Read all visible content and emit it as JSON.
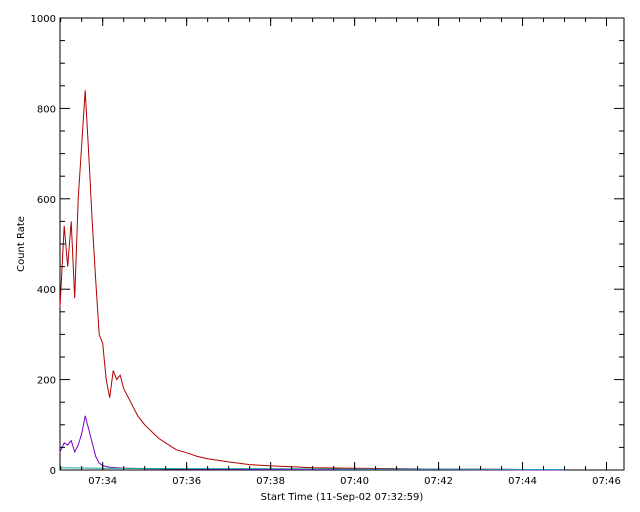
{
  "chart_data": {
    "type": "line",
    "xlabel": "Start Time (11-Sep-02 07:32:59)",
    "ylabel": "Count Rate",
    "xlim": [
      "07:32:59",
      "07:46:25"
    ],
    "ylim": [
      0,
      1000
    ],
    "x_ticks": [
      "07:34",
      "07:36",
      "07:38",
      "07:40",
      "07:42",
      "07:44",
      "07:46"
    ],
    "y_ticks": [
      "0",
      "200",
      "400",
      "600",
      "800",
      "1000"
    ],
    "grid": false,
    "legend": "none",
    "series": [
      {
        "color": "#b00000",
        "x": [
          "07:32:59",
          "07:33:05",
          "07:33:10",
          "07:33:15",
          "07:33:20",
          "07:33:25",
          "07:33:30",
          "07:33:35",
          "07:33:40",
          "07:33:45",
          "07:33:50",
          "07:33:55",
          "07:34:00",
          "07:34:05",
          "07:34:10",
          "07:34:15",
          "07:34:20",
          "07:34:25",
          "07:34:30",
          "07:34:40",
          "07:34:50",
          "07:35:00",
          "07:35:10",
          "07:35:20",
          "07:35:30",
          "07:35:45",
          "07:36:00",
          "07:36:15",
          "07:36:30",
          "07:37:00",
          "07:37:30",
          "07:38:00",
          "07:38:30",
          "07:39:00",
          "07:40:00",
          "07:41:00",
          "07:42:00",
          "07:43:00",
          "07:44:00",
          "07:45:00"
        ],
        "values": [
          360,
          540,
          450,
          550,
          380,
          600,
          720,
          840,
          700,
          550,
          420,
          300,
          280,
          200,
          160,
          220,
          200,
          210,
          180,
          150,
          120,
          100,
          85,
          70,
          60,
          45,
          38,
          30,
          25,
          18,
          12,
          9,
          7,
          5,
          4,
          3,
          2,
          2,
          1,
          1
        ]
      },
      {
        "color": "#7a00c8",
        "x": [
          "07:32:59",
          "07:33:05",
          "07:33:10",
          "07:33:15",
          "07:33:20",
          "07:33:25",
          "07:33:30",
          "07:33:35",
          "07:33:40",
          "07:33:45",
          "07:33:50",
          "07:33:55",
          "07:34:00",
          "07:34:10",
          "07:34:30",
          "07:35:00",
          "07:36:00",
          "07:38:00",
          "07:40:00",
          "07:42:00",
          "07:44:00",
          "07:45:00"
        ],
        "values": [
          40,
          60,
          55,
          65,
          40,
          55,
          80,
          120,
          90,
          60,
          30,
          15,
          10,
          6,
          4,
          3,
          2,
          1,
          1,
          1,
          0,
          0
        ]
      },
      {
        "color": "#1aa89a",
        "x": [
          "07:32:59",
          "07:34:00",
          "07:36:00",
          "07:38:00",
          "07:40:00",
          "07:42:00",
          "07:44:00",
          "07:45:00"
        ],
        "values": [
          5,
          4,
          3,
          3,
          2,
          2,
          1,
          1
        ]
      }
    ]
  }
}
